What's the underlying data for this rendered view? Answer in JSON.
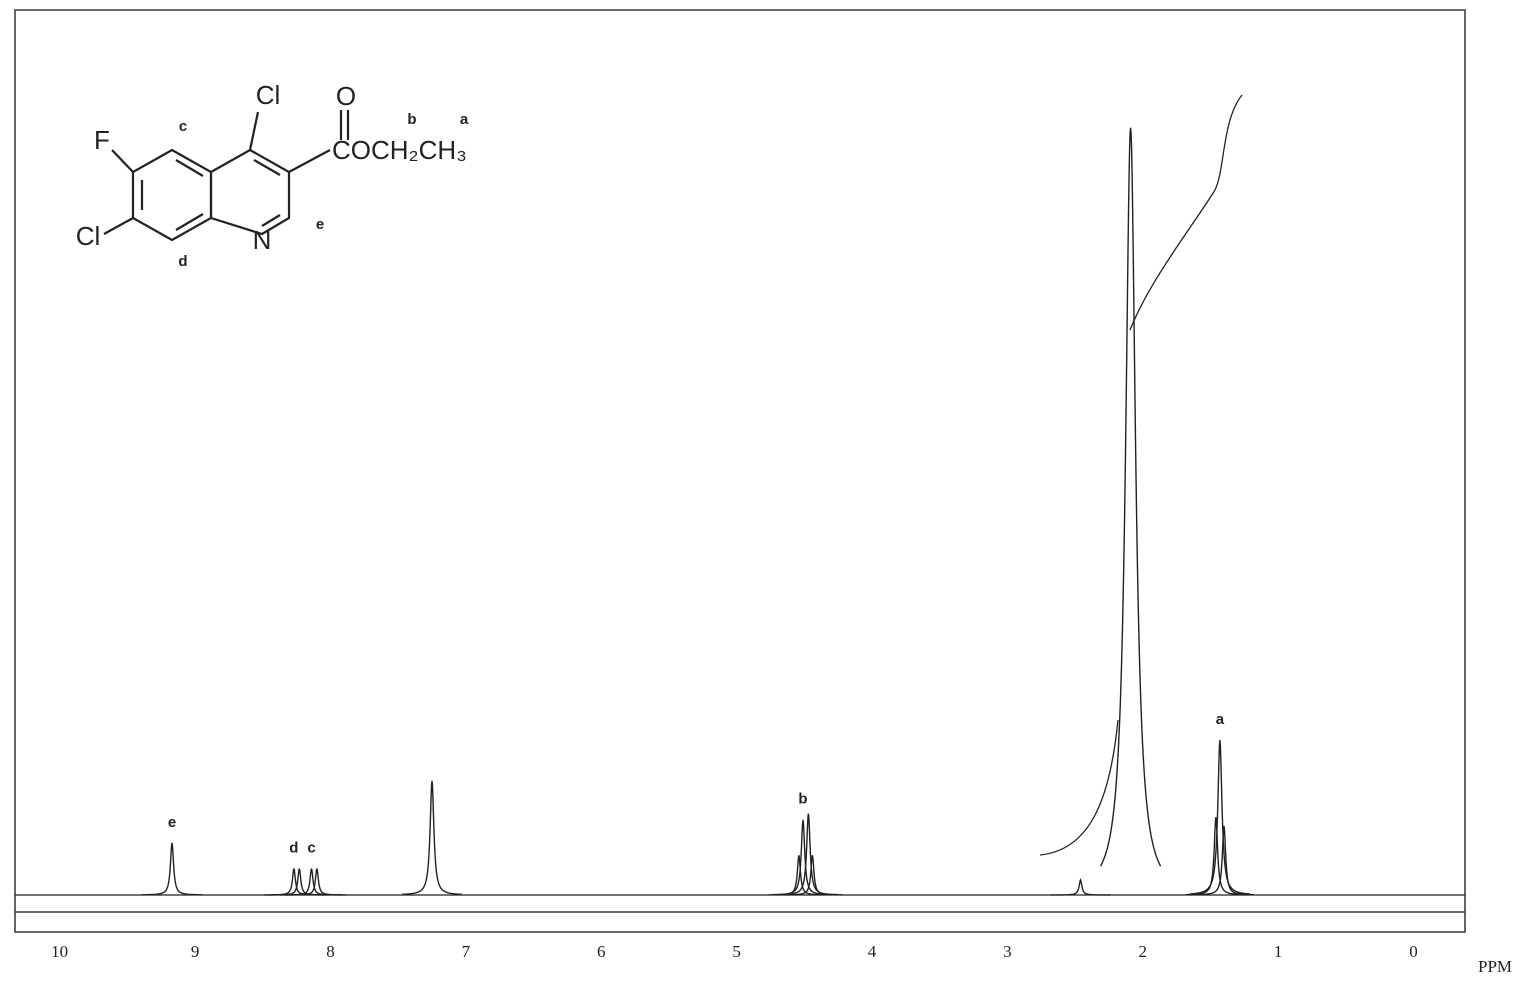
{
  "chart_data": {
    "type": "nmr",
    "xlabel": "PPM",
    "xlim": [
      10.33,
      -0.38
    ],
    "xticks": [
      10,
      9,
      8,
      7,
      6,
      5,
      4,
      3,
      2,
      1,
      0
    ],
    "color": "#222222",
    "peaks": [
      {
        "ppm": 9.17,
        "intensity": 5.9,
        "label": "e"
      },
      {
        "ppm": 8.27,
        "intensity": 3.0,
        "label": "d"
      },
      {
        "ppm": 8.23,
        "intensity": 3.0
      },
      {
        "ppm": 8.14,
        "intensity": 3.0,
        "label": "c"
      },
      {
        "ppm": 8.1,
        "intensity": 3.0
      },
      {
        "ppm": 7.25,
        "intensity": 12.9
      },
      {
        "ppm": 4.54,
        "intensity": 4.5
      },
      {
        "ppm": 4.51,
        "intensity": 8.5,
        "label": "b"
      },
      {
        "ppm": 4.47,
        "intensity": 9.2
      },
      {
        "ppm": 4.44,
        "intensity": 4.5
      },
      {
        "ppm": 2.46,
        "intensity": 1.7
      },
      {
        "ppm": 2.09,
        "intensity": 86.7
      },
      {
        "ppm": 1.46,
        "intensity": 8.8
      },
      {
        "ppm": 1.43,
        "intensity": 17.5,
        "label": "a"
      },
      {
        "ppm": 1.4,
        "intensity": 7.8
      }
    ]
  },
  "structure": {
    "atoms": [
      "Cl",
      "F",
      "Cl",
      "N",
      "O",
      "COCH₂CH₃"
    ],
    "labels": [
      "c",
      "d",
      "e",
      "b",
      "a"
    ]
  }
}
